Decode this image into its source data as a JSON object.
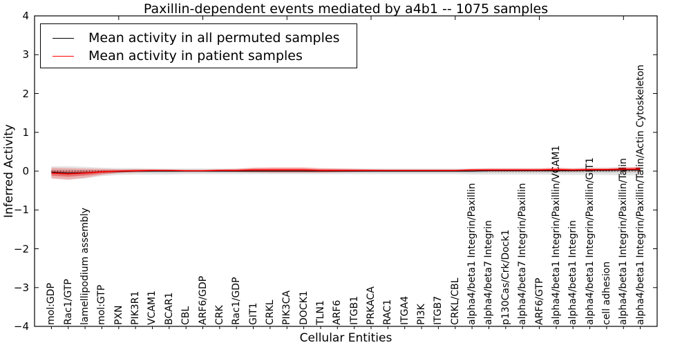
{
  "colors": {
    "black": "#000000",
    "red": "#ff0000",
    "gray_band": "#000000",
    "red_band": "#ff0000"
  },
  "chart_data": {
    "type": "line",
    "title": "Paxillin-dependent events mediated by a4b1 -- 1075 samples",
    "xlabel": "Cellular Entities",
    "ylabel": "Inferred Activity",
    "ylim": [
      -4,
      4
    ],
    "grid": false,
    "legend_position": "upper left",
    "ytick_values": [
      -4,
      -3,
      -2,
      -1,
      0,
      1,
      2,
      3,
      4
    ],
    "ytick_labels": [
      "−4",
      "−3",
      "−2",
      "−1",
      "0",
      "1",
      "2",
      "3",
      "4"
    ],
    "top_axis_ticks": [
      5,
      10,
      15,
      20,
      25,
      30,
      35
    ],
    "categories": [
      "mol:GDP",
      "Rac1/GTP",
      "lamellipodium assembly",
      "mol:GTP",
      "PXN",
      "PIK3R1",
      "VCAM1",
      "BCAR1",
      "CBL",
      "ARF6/GDP",
      "CRK",
      "Rac1/GDP",
      "GIT1",
      "CRKL",
      "PIK3CA",
      "DOCK1",
      "TLN1",
      "ARF6",
      "ITGB1",
      "PRKACA",
      "RAC1",
      "ITGA4",
      "PI3K",
      "ITGB7",
      "CRKL/CBL",
      "alpha4/beta1 Integrin/Paxillin",
      "alpha4/beta7 Integrin",
      "p130Cas/Crk/Dock1",
      "alpha4/beta7 Integrin/Paxillin",
      "ARF6/GTP",
      "alpha4/beta1 Integrin/Paxillin/VCAM1",
      "alpha4/beta1 Integrin",
      "alpha4/beta1 Integrin/Paxillin/GIT1",
      "cell adhesion",
      "alpha4/beta1 Integrin/Paxillin/Talin",
      "alpha4/beta1 Integrin/Paxillin/Talin/Actin Cytoskeleton"
    ],
    "zero_line": {
      "y": 0,
      "style": "dotted",
      "color": "#000000"
    },
    "series": [
      {
        "name": "Mean activity in all permuted samples",
        "color": "#000000",
        "line_width": 1.3,
        "band_color": "#000000",
        "band_opacity_outer": 0.1,
        "band_opacity_inner": 0.12,
        "values": [
          -0.03,
          -0.05,
          -0.04,
          -0.02,
          -0.01,
          0,
          0,
          0,
          0,
          0,
          0,
          0,
          0,
          0,
          0,
          0,
          0,
          0,
          0,
          0,
          0,
          0,
          0,
          0,
          0,
          0,
          0.01,
          0.01,
          0.01,
          0.01,
          0.01,
          0.01,
          0.02,
          0.02,
          0.03,
          0.03
        ],
        "band_upper": [
          0.12,
          0.13,
          0.11,
          0.09,
          0.08,
          0.08,
          0.07,
          0.07,
          0.07,
          0.07,
          0.07,
          0.07,
          0.08,
          0.08,
          0.08,
          0.08,
          0.07,
          0.07,
          0.07,
          0.07,
          0.07,
          0.07,
          0.07,
          0.07,
          0.07,
          0.07,
          0.08,
          0.08,
          0.08,
          0.08,
          0.08,
          0.08,
          0.09,
          0.09,
          0.1,
          0.1
        ],
        "band_lower": [
          -0.18,
          -0.22,
          -0.19,
          -0.13,
          -0.1,
          -0.09,
          -0.09,
          -0.09,
          -0.08,
          -0.08,
          -0.08,
          -0.08,
          -0.08,
          -0.08,
          -0.08,
          -0.08,
          -0.08,
          -0.08,
          -0.08,
          -0.08,
          -0.08,
          -0.08,
          -0.08,
          -0.08,
          -0.08,
          -0.09,
          -0.09,
          -0.09,
          -0.09,
          -0.09,
          -0.1,
          -0.1,
          -0.1,
          -0.1,
          -0.11,
          -0.11
        ]
      },
      {
        "name": "Mean activity in patient samples",
        "color": "#ff0000",
        "line_width": 1.6,
        "band_color": "#ff0000",
        "band_opacity_outer": 0.22,
        "band_opacity_inner": 0.28,
        "values": [
          -0.05,
          -0.07,
          -0.05,
          -0.02,
          0,
          0.01,
          0.02,
          0.02,
          0.01,
          0.01,
          0.02,
          0.02,
          0.03,
          0.03,
          0.03,
          0.03,
          0.02,
          0.02,
          0.02,
          0.02,
          0.02,
          0.02,
          0.02,
          0.02,
          0.02,
          0.03,
          0.03,
          0.03,
          0.03,
          0.03,
          0.04,
          0.03,
          0.04,
          0.04,
          0.05,
          0.05
        ],
        "band_upper": [
          0.09,
          0.08,
          0.07,
          0.06,
          0.05,
          0.05,
          0.05,
          0.04,
          0.03,
          0.03,
          0.05,
          0.06,
          0.09,
          0.1,
          0.1,
          0.1,
          0.08,
          0.07,
          0.06,
          0.05,
          0.04,
          0.04,
          0.04,
          0.04,
          0.04,
          0.06,
          0.07,
          0.07,
          0.07,
          0.07,
          0.09,
          0.07,
          0.08,
          0.08,
          0.1,
          0.11
        ],
        "band_lower": [
          -0.19,
          -0.22,
          -0.17,
          -0.1,
          -0.05,
          -0.03,
          -0.01,
          0,
          -0.01,
          -0.01,
          -0.01,
          -0.02,
          -0.03,
          -0.04,
          -0.04,
          -0.04,
          -0.04,
          -0.03,
          -0.02,
          -0.01,
          0,
          0,
          0,
          0,
          0,
          0,
          -0.01,
          -0.01,
          -0.01,
          -0.01,
          -0.01,
          -0.01,
          0,
          0,
          0,
          -0.01
        ]
      }
    ]
  }
}
